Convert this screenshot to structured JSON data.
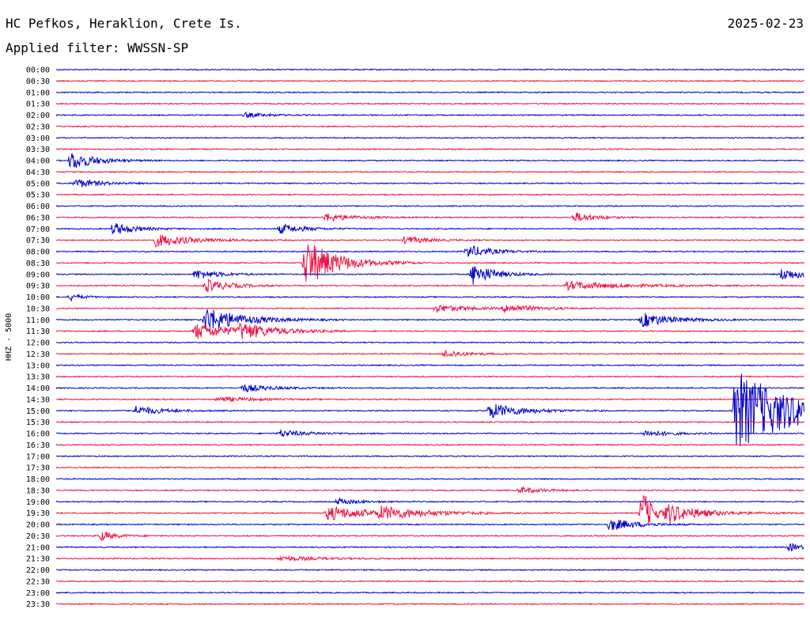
{
  "header": {
    "station": "HC Pefkos, Heraklion, Crete Is.",
    "date": "2025-02-23",
    "filter": "Applied filter: WWSSN-SP"
  },
  "chart_data": {
    "type": "line",
    "title": "HC Pefkos, Heraklion, Crete Is.",
    "subtitle": "Applied filter: WWSSN-SP",
    "ylabel": "HHZ - 5000",
    "xlabel": "",
    "x_unit": "minutes",
    "x_range": [
      0,
      30
    ],
    "rows": [
      "00:00",
      "00:30",
      "01:00",
      "01:30",
      "02:00",
      "02:30",
      "03:00",
      "03:30",
      "04:00",
      "04:30",
      "05:00",
      "05:30",
      "06:00",
      "06:30",
      "07:00",
      "07:30",
      "08:00",
      "08:30",
      "09:00",
      "09:30",
      "10:00",
      "10:30",
      "11:00",
      "11:30",
      "12:00",
      "12:30",
      "13:00",
      "13:30",
      "14:00",
      "14:30",
      "15:00",
      "15:30",
      "16:00",
      "16:30",
      "17:00",
      "17:30",
      "18:00",
      "18:30",
      "19:00",
      "19:30",
      "20:00",
      "20:30",
      "21:00",
      "21:30",
      "22:00",
      "22:30",
      "23:00",
      "23:30"
    ],
    "colors": [
      "#0000cc",
      "#ee1144"
    ],
    "events": [
      {
        "row": 4,
        "t": 7.6,
        "amp": 3,
        "dur": 0.8
      },
      {
        "row": 8,
        "t": 0.6,
        "amp": 12,
        "dur": 0.9
      },
      {
        "row": 10,
        "t": 0.8,
        "amp": 6,
        "dur": 0.9
      },
      {
        "row": 13,
        "t": 10.8,
        "amp": 5,
        "dur": 1.1
      },
      {
        "row": 13,
        "t": 20.8,
        "amp": 6,
        "dur": 0.8
      },
      {
        "row": 14,
        "t": 2.3,
        "amp": 8,
        "dur": 0.8
      },
      {
        "row": 14,
        "t": 9.0,
        "amp": 6,
        "dur": 0.9
      },
      {
        "row": 15,
        "t": 4.0,
        "amp": 8,
        "dur": 1.4
      },
      {
        "row": 15,
        "t": 14.0,
        "amp": 5,
        "dur": 0.8
      },
      {
        "row": 16,
        "t": 16.5,
        "amp": 8,
        "dur": 0.9
      },
      {
        "row": 17,
        "t": 10.0,
        "amp": 30,
        "dur": 1.2
      },
      {
        "row": 18,
        "t": 5.6,
        "amp": 6,
        "dur": 0.9
      },
      {
        "row": 18,
        "t": 16.7,
        "amp": 14,
        "dur": 0.8
      },
      {
        "row": 18,
        "t": 29.1,
        "amp": 8,
        "dur": 0.9
      },
      {
        "row": 19,
        "t": 6.0,
        "amp": 8,
        "dur": 0.9
      },
      {
        "row": 19,
        "t": 20.5,
        "amp": 5,
        "dur": 2.2
      },
      {
        "row": 20,
        "t": 0.6,
        "amp": 4,
        "dur": 0.5
      },
      {
        "row": 21,
        "t": 15.2,
        "amp": 5,
        "dur": 1.2
      },
      {
        "row": 21,
        "t": 18.0,
        "amp": 5,
        "dur": 1.2
      },
      {
        "row": 22,
        "t": 6.0,
        "amp": 16,
        "dur": 1.4
      },
      {
        "row": 22,
        "t": 23.5,
        "amp": 9,
        "dur": 1.2
      },
      {
        "row": 23,
        "t": 5.6,
        "amp": 10,
        "dur": 1.5
      },
      {
        "row": 23,
        "t": 7.4,
        "amp": 9,
        "dur": 1.2
      },
      {
        "row": 25,
        "t": 15.6,
        "amp": 5,
        "dur": 0.8
      },
      {
        "row": 28,
        "t": 7.5,
        "amp": 5,
        "dur": 1.0
      },
      {
        "row": 29,
        "t": 6.5,
        "amp": 3,
        "dur": 1.5
      },
      {
        "row": 30,
        "t": 3.2,
        "amp": 6,
        "dur": 1.0
      },
      {
        "row": 30,
        "t": 17.4,
        "amp": 10,
        "dur": 1.2
      },
      {
        "row": 30,
        "t": 27.2,
        "amp": 52,
        "dur": 2.4
      },
      {
        "row": 32,
        "t": 9.0,
        "amp": 4,
        "dur": 1.2
      },
      {
        "row": 32,
        "t": 23.6,
        "amp": 4,
        "dur": 1.0
      },
      {
        "row": 37,
        "t": 18.6,
        "amp": 4,
        "dur": 0.8
      },
      {
        "row": 38,
        "t": 11.3,
        "amp": 4,
        "dur": 0.8
      },
      {
        "row": 39,
        "t": 10.9,
        "amp": 9,
        "dur": 1.6
      },
      {
        "row": 39,
        "t": 13.0,
        "amp": 7,
        "dur": 1.8
      },
      {
        "row": 39,
        "t": 23.5,
        "amp": 30,
        "dur": 0.4
      },
      {
        "row": 39,
        "t": 24.5,
        "amp": 11,
        "dur": 1.4
      },
      {
        "row": 40,
        "t": 22.2,
        "amp": 8,
        "dur": 1.0
      },
      {
        "row": 41,
        "t": 1.8,
        "amp": 6,
        "dur": 0.6
      },
      {
        "row": 42,
        "t": 29.4,
        "amp": 5,
        "dur": 0.5
      },
      {
        "row": 43,
        "t": 9.0,
        "amp": 3,
        "dur": 1.5
      }
    ]
  }
}
